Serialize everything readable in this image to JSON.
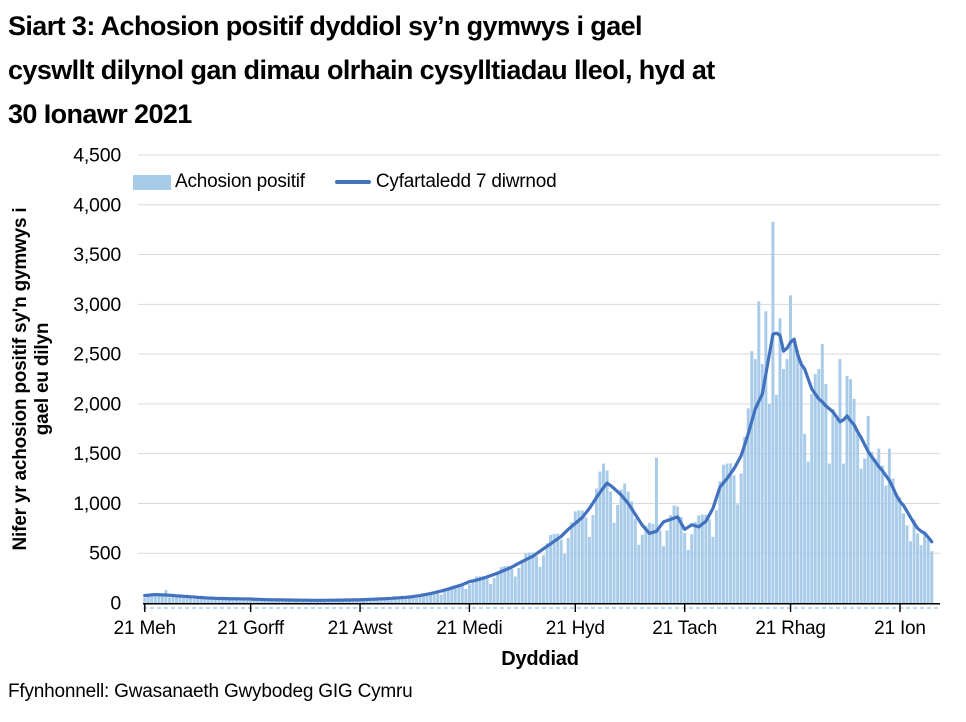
{
  "title_lines": [
    "Siart 3: Achosion positif dyddiol sy’n gymwys i gael",
    "cyswllt dilynol gan dimau olrhain cysylltiadau lleol, hyd at",
    "30 Ionawr 2021"
  ],
  "legend": {
    "bar_label": "Achosion positif",
    "line_label": "Cyfartaledd 7 diwrnod"
  },
  "y_axis": {
    "title_lines": [
      "Nifer yr achosion positif sy'n gymwys i",
      "gael eu dilyn"
    ],
    "ticks": [
      {
        "label": "0",
        "value": 0
      },
      {
        "label": "500",
        "value": 500
      },
      {
        "label": "1,000",
        "value": 1000
      },
      {
        "label": "1,500",
        "value": 1500
      },
      {
        "label": "2,000",
        "value": 2000
      },
      {
        "label": "2,500",
        "value": 2500
      },
      {
        "label": "3,000",
        "value": 3000
      },
      {
        "label": "3,500",
        "value": 3500
      },
      {
        "label": "4,000",
        "value": 4000
      },
      {
        "label": "4,500",
        "value": 4500
      }
    ],
    "max": 4500
  },
  "x_axis": {
    "title": "Dyddiad",
    "ticks": [
      {
        "label": "21 Meh",
        "day": 0
      },
      {
        "label": "21 Gorff",
        "day": 30
      },
      {
        "label": "21 Awst",
        "day": 61
      },
      {
        "label": "21 Medi",
        "day": 92
      },
      {
        "label": "21 Hyd",
        "day": 122
      },
      {
        "label": "21 Tach",
        "day": 153
      },
      {
        "label": "21 Rhag",
        "day": 183
      },
      {
        "label": "21 Ion",
        "day": 214
      }
    ]
  },
  "source": "Ffynhonnell: Gwasanaeth Gwybodeg GIG Cymru",
  "colors": {
    "bar": "#A9CBEA",
    "line": "#4271BE",
    "grid": "#D9D9D9",
    "axis": "#000000",
    "baseline_dash": "#A9CBEA"
  },
  "chart_data": {
    "type": "bar",
    "title": "Siart 3: Achosion positif dyddiol sy’n gymwys i gael cyswllt dilynol gan dimau olrhain cysylltiadau lleol, hyd at 30 Ionawr 2021",
    "xlabel": "Dyddiad",
    "ylabel": "Nifer yr achosion positif sy'n gymwys i gael eu dilyn",
    "ylim": [
      0,
      4500
    ],
    "grid": "horizontal",
    "legend_position": "top-left-inside",
    "x_unit": "daily",
    "x_tick_labels": [
      "21 Meh",
      "21 Gorff",
      "21 Awst",
      "21 Medi",
      "21 Hyd",
      "21 Tach",
      "21 Rhag",
      "21 Ion"
    ],
    "series": [
      {
        "name": "Achosion positif",
        "type": "bar",
        "values": [
          55,
          70,
          85,
          100,
          90,
          90,
          130,
          55,
          65,
          75,
          80,
          75,
          70,
          60,
          40,
          50,
          58,
          60,
          55,
          52,
          45,
          32,
          40,
          46,
          50,
          48,
          45,
          40,
          28,
          36,
          42,
          44,
          41,
          39,
          32,
          23,
          28,
          34,
          36,
          35,
          32,
          28,
          20,
          26,
          29,
          32,
          31,
          29,
          26,
          19,
          24,
          28,
          32,
          31,
          30,
          27,
          20,
          26,
          31,
          36,
          35,
          35,
          32,
          24,
          33,
          40,
          46,
          47,
          46,
          43,
          33,
          44,
          55,
          63,
          64,
          65,
          62,
          49,
          66,
          86,
          100,
          106,
          111,
          106,
          84,
          114,
          147,
          173,
          181,
          187,
          176,
          140,
          189,
          233,
          265,
          269,
          270,
          249,
          193,
          253,
          315,
          362,
          370,
          373,
          342,
          266,
          352,
          438,
          500,
          506,
          508,
          470,
          364,
          480,
          600,
          684,
          694,
          697,
          637,
          494,
          651,
          809,
          920,
          930,
          929,
          860,
          665,
          884,
          1150,
          1320,
          1400,
          1330,
          1120,
          805,
          984,
          1139,
          1200,
          1120,
          1021,
          846,
          585,
          686,
          777,
          805,
          795,
          1460,
          730,
          571,
          729,
          882,
          981,
          969,
          864,
          703,
          534,
          691,
          814,
          880,
          888,
          886,
          841,
          665,
          931,
          1223,
          1389,
          1400,
          1404,
          1283,
          991,
          1302,
          1670,
          1955,
          2530,
          2450,
          3030,
          2400,
          2930,
          2000,
          3830,
          2090,
          2860,
          2350,
          2450,
          3090,
          2630,
          2540,
          2430,
          1700,
          1420,
          2100,
          2300,
          2350,
          2600,
          2200,
          1400,
          1950,
          1850,
          2450,
          1400,
          2280,
          2250,
          2050,
          1700,
          1350,
          1450,
          1880,
          1520,
          1450,
          1550,
          1380,
          1180,
          1550,
          1250,
          1100,
          1060,
          900,
          780,
          620,
          840,
          700,
          580,
          720,
          640,
          520
        ]
      },
      {
        "name": "Cyfartaledd 7 diwrnod",
        "type": "line",
        "values": [
          75,
          78,
          82,
          85,
          83,
          82,
          80,
          78,
          75,
          72,
          70,
          67,
          65,
          62,
          60,
          57,
          55,
          52,
          50,
          49,
          47,
          46,
          45,
          44,
          43,
          43,
          42,
          42,
          41,
          41,
          40,
          38,
          37,
          36,
          34,
          33,
          32,
          32,
          31,
          31,
          30,
          30,
          29,
          29,
          28,
          28,
          28,
          27,
          27,
          27,
          27,
          27,
          28,
          28,
          28,
          29,
          29,
          30,
          30,
          31,
          31,
          32,
          34,
          35,
          37,
          38,
          40,
          42,
          43,
          45,
          47,
          50,
          52,
          55,
          57,
          60,
          65,
          70,
          75,
          82,
          88,
          95,
          103,
          112,
          120,
          130,
          140,
          150,
          162,
          173,
          185,
          200,
          215,
          222,
          230,
          240,
          250,
          262,
          275,
          287,
          300,
          315,
          330,
          345,
          360,
          380,
          400,
          417,
          435,
          452,
          470,
          495,
          520,
          545,
          570,
          595,
          620,
          645,
          670,
          705,
          740,
          770,
          800,
          830,
          860,
          905,
          950,
          1005,
          1060,
          1110,
          1160,
          1205,
          1180,
          1150,
          1118,
          1085,
          1043,
          1000,
          945,
          890,
          835,
          780,
          740,
          700,
          710,
          720,
          768,
          815,
          828,
          840,
          853,
          865,
          800,
          740,
          763,
          785,
          775,
          765,
          793,
          820,
          885,
          950,
          1058,
          1165,
          1208,
          1250,
          1300,
          1350,
          1415,
          1480,
          1590,
          1700,
          1825,
          1950,
          2025,
          2100,
          2300,
          2500,
          2700,
          2710,
          2690,
          2530,
          2560,
          2620,
          2650,
          2500,
          2400,
          2350,
          2250,
          2150,
          2100,
          2050,
          2020,
          1980,
          1950,
          1920,
          1870,
          1820,
          1840,
          1880,
          1830,
          1790,
          1720,
          1660,
          1590,
          1520,
          1470,
          1420,
          1370,
          1330,
          1280,
          1230,
          1160,
          1080,
          1020,
          980,
          920,
          860,
          800,
          750,
          720,
          700,
          660,
          615
        ]
      }
    ]
  }
}
